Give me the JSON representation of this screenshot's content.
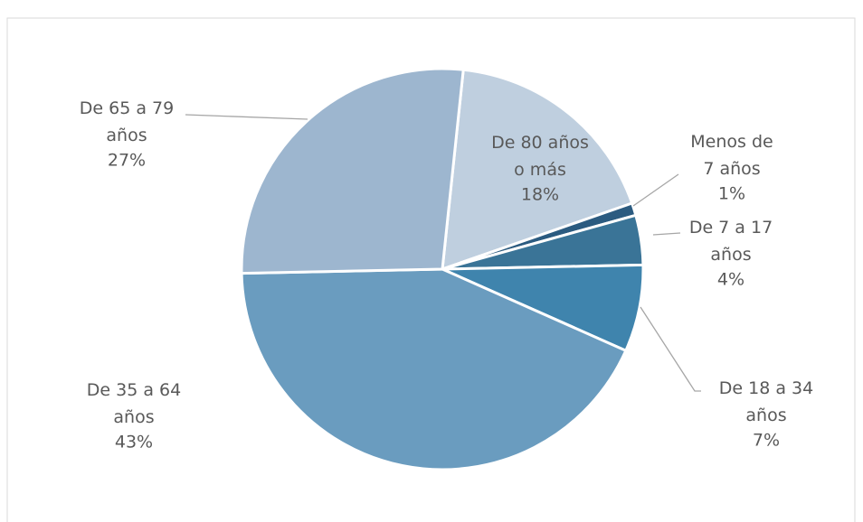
{
  "chart_data": {
    "type": "pie",
    "categories": [
      "De 80 años o más",
      "Menos de 7 años",
      "De 7 a 17 años",
      "De 18 a 34 años",
      "De 35 a 64 años",
      "De 65 a 79 años"
    ],
    "values": [
      18,
      1,
      4,
      7,
      43,
      27
    ],
    "value_labels": [
      "18%",
      "1%",
      "4%",
      "7%",
      "43%",
      "27%"
    ],
    "colors": [
      "#bfcfdf",
      "#2b5b80",
      "#3a7497",
      "#3f84ad",
      "#6a9cbf",
      "#9db6cf"
    ]
  }
}
